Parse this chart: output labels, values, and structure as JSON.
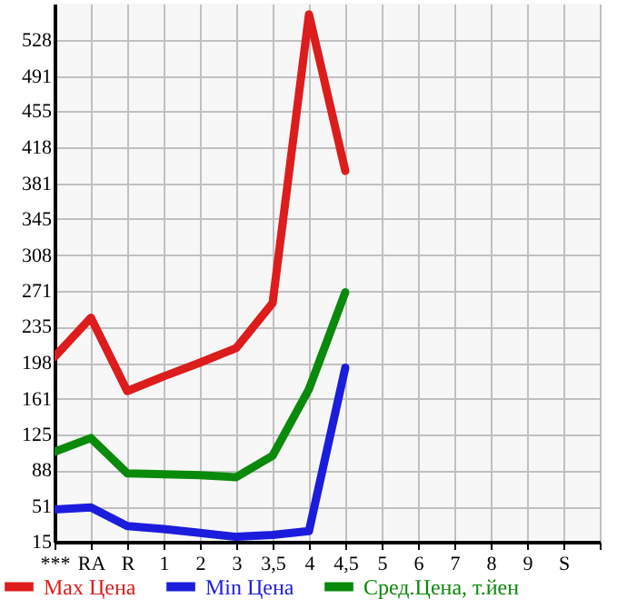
{
  "chart_data": {
    "type": "line",
    "categories": [
      "***",
      "RA",
      "R",
      "1",
      "2",
      "3",
      "3,5",
      "4",
      "4,5",
      "5",
      "6",
      "7",
      "8",
      "9",
      "S",
      null
    ],
    "series": [
      {
        "name": "Max Цена",
        "color": "#dd1c1c",
        "values": [
          204,
          244,
          169,
          184,
          198,
          213,
          259,
          554,
          394,
          null,
          null,
          null,
          null,
          null,
          null,
          null
        ]
      },
      {
        "name": "Min Цена",
        "color": "#1c1cdd",
        "values": [
          48,
          50,
          31,
          28,
          24,
          20,
          22,
          26,
          193,
          null,
          null,
          null,
          null,
          null,
          null,
          null
        ]
      },
      {
        "name": "Сред.Цена, т.йен",
        "color": "#0a8a0a",
        "values": [
          107,
          121,
          85,
          84,
          83,
          81,
          103,
          171,
          270,
          null,
          null,
          null,
          null,
          null,
          null,
          null
        ]
      }
    ],
    "ylim": [
      15,
      565
    ],
    "yticks": [
      15,
      51,
      88,
      125,
      161,
      198,
      235,
      271,
      308,
      345,
      381,
      418,
      455,
      491,
      528
    ],
    "grid": true,
    "legend": "bottom"
  }
}
